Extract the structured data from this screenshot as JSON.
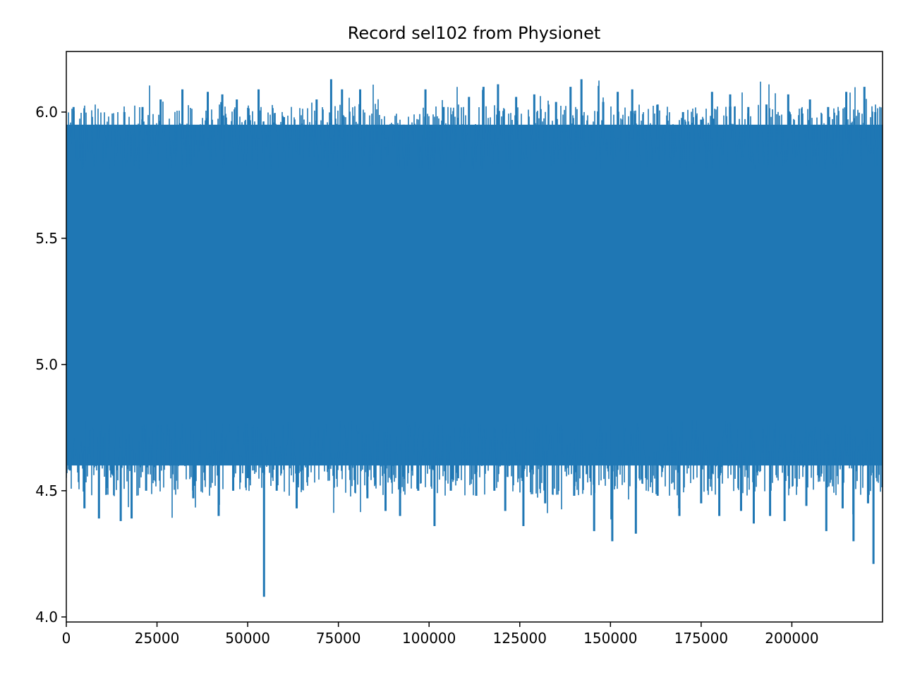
{
  "chart_data": {
    "type": "line",
    "title": "Record sel102 from Physionet",
    "xlabel": "",
    "ylabel": "",
    "xlim": [
      0,
      225000
    ],
    "ylim": [
      3.98,
      6.24
    ],
    "x_ticks": [
      0,
      25000,
      50000,
      75000,
      100000,
      125000,
      150000,
      175000,
      200000
    ],
    "x_tick_labels": [
      "0",
      "25000",
      "50000",
      "75000",
      "100000",
      "125000",
      "150000",
      "175000",
      "200000"
    ],
    "y_ticks": [
      4.0,
      4.5,
      5.0,
      5.5,
      6.0
    ],
    "y_tick_labels": [
      "4.0",
      "4.5",
      "5.0",
      "5.5",
      "6.0"
    ],
    "grid": false,
    "series_color": "#1f77b4",
    "series": [
      {
        "x_range": [
          0,
          225000
        ],
        "sample_count": 225000,
        "typical_range": [
          4.6,
          5.95
        ],
        "min": 4.08,
        "max": 6.13,
        "upper_peaks": [
          [
            2000,
            6.02
          ],
          [
            9000,
            5.95
          ],
          [
            16000,
            6.0
          ],
          [
            21000,
            6.02
          ],
          [
            26000,
            6.05
          ],
          [
            32000,
            6.09
          ],
          [
            39000,
            6.08
          ],
          [
            43000,
            6.07
          ],
          [
            47000,
            6.05
          ],
          [
            53000,
            6.09
          ],
          [
            60000,
            5.98
          ],
          [
            64000,
            5.83
          ],
          [
            69000,
            6.05
          ],
          [
            73000,
            6.13
          ],
          [
            76000,
            6.09
          ],
          [
            81000,
            6.09
          ],
          [
            88000,
            5.86
          ],
          [
            93000,
            5.95
          ],
          [
            99000,
            6.09
          ],
          [
            104000,
            6.02
          ],
          [
            111000,
            6.06
          ],
          [
            115000,
            6.1
          ],
          [
            119000,
            6.11
          ],
          [
            124000,
            6.06
          ],
          [
            129000,
            6.07
          ],
          [
            135000,
            6.04
          ],
          [
            139000,
            6.1
          ],
          [
            142000,
            6.13
          ],
          [
            148000,
            6.04
          ],
          [
            152000,
            6.08
          ],
          [
            156000,
            6.09
          ],
          [
            163000,
            6.03
          ],
          [
            170000,
            6.0
          ],
          [
            175000,
            5.97
          ],
          [
            178000,
            6.08
          ],
          [
            183000,
            6.07
          ],
          [
            188000,
            6.02
          ],
          [
            193000,
            6.03
          ],
          [
            199000,
            6.07
          ],
          [
            205000,
            6.05
          ],
          [
            210000,
            6.02
          ],
          [
            215000,
            6.08
          ],
          [
            220000,
            6.1
          ],
          [
            223000,
            6.0
          ]
        ],
        "lower_troughs": [
          [
            1000,
            4.58
          ],
          [
            5000,
            4.43
          ],
          [
            9000,
            4.39
          ],
          [
            15000,
            4.38
          ],
          [
            18000,
            4.39
          ],
          [
            22000,
            4.5
          ],
          [
            27000,
            4.6
          ],
          [
            35000,
            4.47
          ],
          [
            42000,
            4.4
          ],
          [
            46000,
            4.5
          ],
          [
            50000,
            4.55
          ],
          [
            54500,
            4.08
          ],
          [
            58000,
            4.5
          ],
          [
            63500,
            4.43
          ],
          [
            69000,
            4.6
          ],
          [
            75000,
            4.63
          ],
          [
            83000,
            4.47
          ],
          [
            88000,
            4.42
          ],
          [
            92000,
            4.4
          ],
          [
            97000,
            4.5
          ],
          [
            101500,
            4.36
          ],
          [
            106000,
            4.5
          ],
          [
            113000,
            4.48
          ],
          [
            118000,
            4.5
          ],
          [
            121000,
            4.42
          ],
          [
            126000,
            4.36
          ],
          [
            132000,
            4.45
          ],
          [
            140000,
            4.48
          ],
          [
            145500,
            4.34
          ],
          [
            150500,
            4.3
          ],
          [
            157000,
            4.33
          ],
          [
            163000,
            4.48
          ],
          [
            169000,
            4.4
          ],
          [
            175000,
            4.45
          ],
          [
            180000,
            4.4
          ],
          [
            186000,
            4.42
          ],
          [
            189500,
            4.37
          ],
          [
            194000,
            4.4
          ],
          [
            198000,
            4.38
          ],
          [
            204000,
            4.44
          ],
          [
            209500,
            4.34
          ],
          [
            214000,
            4.43
          ],
          [
            217000,
            4.3
          ],
          [
            221000,
            4.45
          ],
          [
            222500,
            4.21
          ]
        ]
      }
    ]
  }
}
